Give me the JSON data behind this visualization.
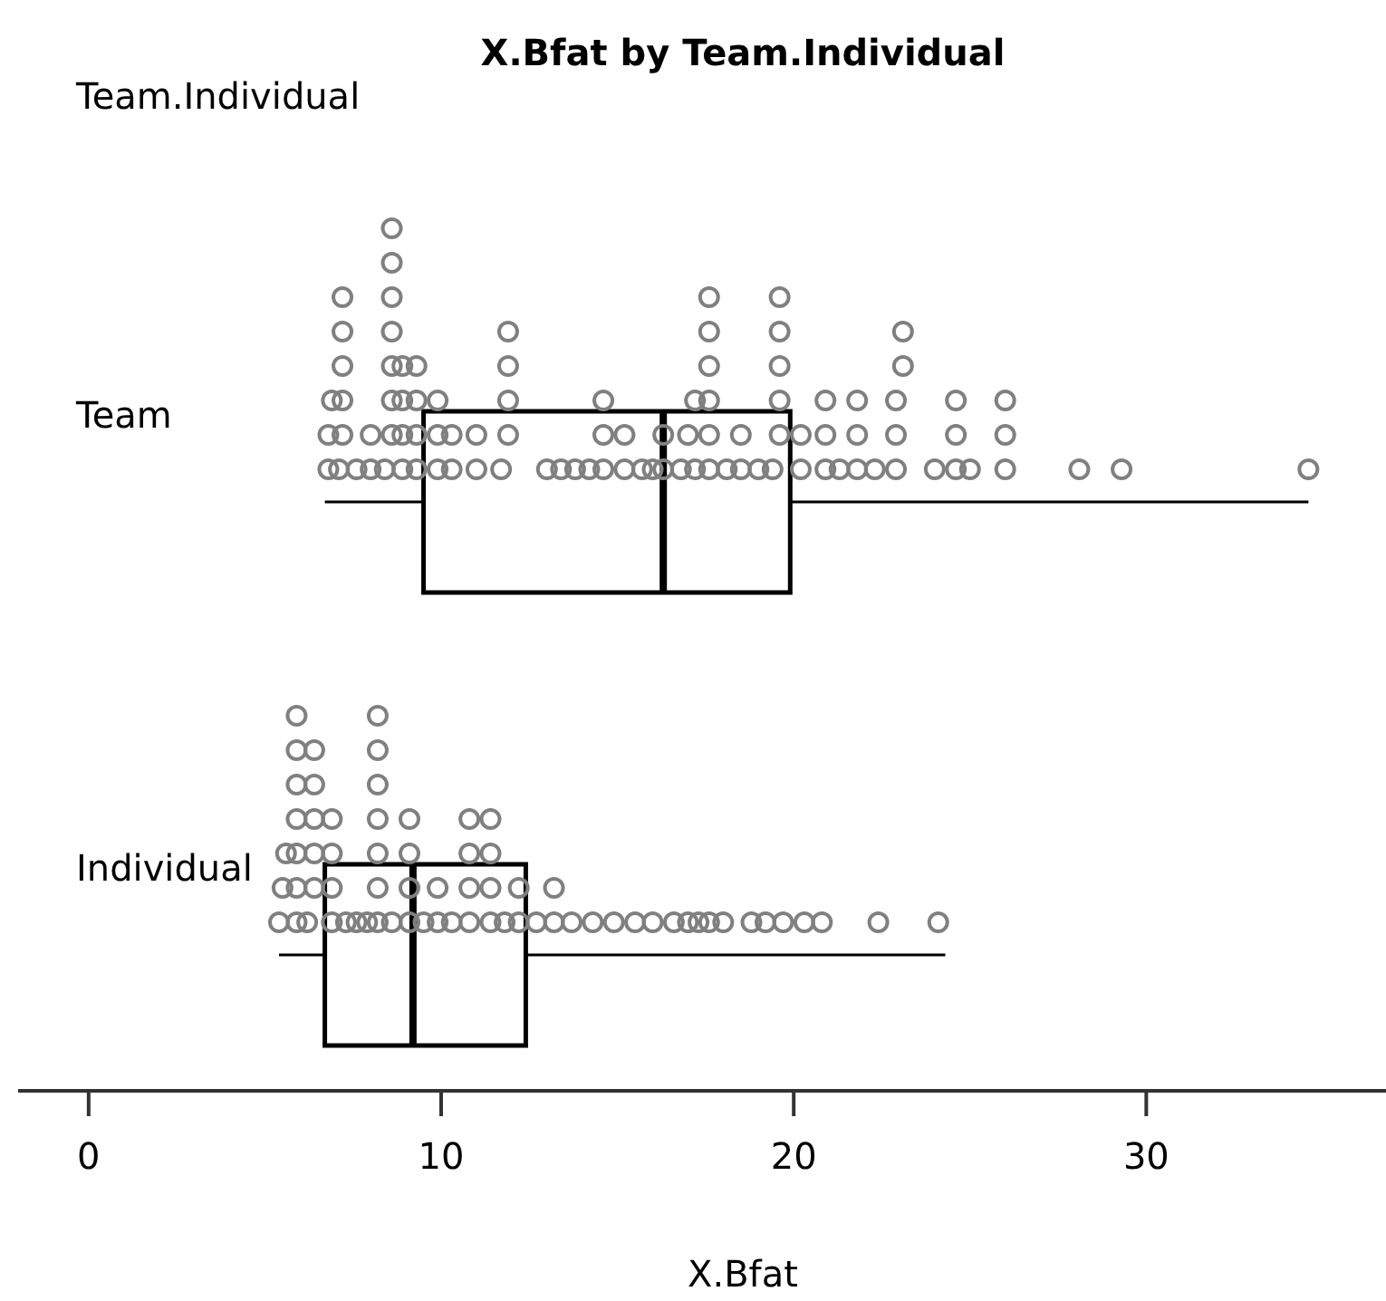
{
  "chart_data": {
    "type": "box",
    "orientation": "horizontal",
    "title": "X.Bfat by Team.Individual",
    "ylabel": "Team.Individual",
    "xlabel": "X.Bfat",
    "categories": [
      "Team",
      "Individual"
    ],
    "boxes": [
      {
        "low": 6.7,
        "q1": 9.5,
        "median": 16.3,
        "q3": 19.9,
        "high": 34.6
      },
      {
        "low": 5.4,
        "q1": 6.7,
        "median": 9.2,
        "q3": 12.4,
        "high": 24.3
      }
    ],
    "xlim": [
      -2,
      36.8
    ],
    "xticks": [
      0,
      10,
      20,
      30
    ],
    "grid": false,
    "series": [
      {
        "type": "scatter",
        "color": "#808080",
        "marker": "circle",
        "x": [
          "Team",
          "Team",
          "Team",
          "Team",
          "Team",
          "Team",
          "Team",
          "Team",
          "Team",
          "Team",
          "Team",
          "Team",
          "Team",
          "Team",
          "Team",
          "Team",
          "Team",
          "Team",
          "Team",
          "Team",
          "Team",
          "Team",
          "Team",
          "Team",
          "Team",
          "Team",
          "Team",
          "Team",
          "Team",
          "Team",
          "Team",
          "Team",
          "Team",
          "Team",
          "Team",
          "Team",
          "Team",
          "Team",
          "Team",
          "Team",
          "Team",
          "Team",
          "Team",
          "Team",
          "Team",
          "Team",
          "Team",
          "Team",
          "Team",
          "Team",
          "Team",
          "Team",
          "Team",
          "Team",
          "Team",
          "Team",
          "Team",
          "Team",
          "Team",
          "Team",
          "Team",
          "Team",
          "Team",
          "Team",
          "Team",
          "Team",
          "Team",
          "Team",
          "Team",
          "Team",
          "Team",
          "Team",
          "Team",
          "Team",
          "Team",
          "Team",
          "Team",
          "Team",
          "Team",
          "Team",
          "Team",
          "Team",
          "Team",
          "Team",
          "Team",
          "Team",
          "Team",
          "Team",
          "Team",
          "Team",
          "Team",
          "Team",
          "Team",
          "Team",
          "Team",
          "Team",
          "Team",
          "Team",
          "Team"
        ],
        "values": [
          6.8,
          6.8,
          6.9,
          7.1,
          7.2,
          7.2,
          7.2,
          7.2,
          7.2,
          7.6,
          8.0,
          8.0,
          8.4,
          8.6,
          8.6,
          8.6,
          8.6,
          8.6,
          8.6,
          8.6,
          8.9,
          8.9,
          8.9,
          8.9,
          9.3,
          9.3,
          9.3,
          9.3,
          9.9,
          9.9,
          9.9,
          10.3,
          10.3,
          11.0,
          11.0,
          11.7,
          11.9,
          11.9,
          11.9,
          11.9,
          13.0,
          13.4,
          13.8,
          14.2,
          14.6,
          14.6,
          14.6,
          15.2,
          15.2,
          15.7,
          16.0,
          16.3,
          16.3,
          16.8,
          17.0,
          17.2,
          17.2,
          17.6,
          17.6,
          17.6,
          17.6,
          17.6,
          17.6,
          18.1,
          18.5,
          18.5,
          19.0,
          19.4,
          19.6,
          19.6,
          19.6,
          19.6,
          19.6,
          20.2,
          20.2,
          20.9,
          20.9,
          20.9,
          21.3,
          21.8,
          21.8,
          21.8,
          22.3,
          22.9,
          22.9,
          22.9,
          23.1,
          23.1,
          24.0,
          24.6,
          24.6,
          24.6,
          25.0,
          26.0,
          26.0,
          26.0,
          28.1,
          29.3,
          34.6
        ]
      },
      {
        "type": "scatter",
        "color": "#808080",
        "marker": "circle",
        "x": [
          "Individual",
          "Individual",
          "Individual",
          "Individual",
          "Individual",
          "Individual",
          "Individual",
          "Individual",
          "Individual",
          "Individual",
          "Individual",
          "Individual",
          "Individual",
          "Individual",
          "Individual",
          "Individual",
          "Individual",
          "Individual",
          "Individual",
          "Individual",
          "Individual",
          "Individual",
          "Individual",
          "Individual",
          "Individual",
          "Individual",
          "Individual",
          "Individual",
          "Individual",
          "Individual",
          "Individual",
          "Individual",
          "Individual",
          "Individual",
          "Individual",
          "Individual",
          "Individual",
          "Individual",
          "Individual",
          "Individual",
          "Individual",
          "Individual",
          "Individual",
          "Individual",
          "Individual",
          "Individual",
          "Individual",
          "Individual",
          "Individual",
          "Individual",
          "Individual",
          "Individual",
          "Individual",
          "Individual",
          "Individual",
          "Individual",
          "Individual",
          "Individual",
          "Individual",
          "Individual",
          "Individual",
          "Individual",
          "Individual",
          "Individual",
          "Individual",
          "Individual",
          "Individual",
          "Individual",
          "Individual",
          "Individual"
        ],
        "values": [
          5.4,
          5.5,
          5.6,
          5.9,
          5.9,
          5.9,
          5.9,
          5.9,
          5.9,
          5.9,
          6.2,
          6.4,
          6.4,
          6.4,
          6.4,
          6.4,
          6.9,
          6.9,
          6.9,
          6.9,
          7.3,
          7.6,
          7.9,
          8.2,
          8.2,
          8.2,
          8.2,
          8.2,
          8.2,
          8.2,
          8.6,
          9.1,
          9.1,
          9.1,
          9.1,
          9.5,
          9.9,
          9.9,
          10.3,
          10.8,
          10.8,
          10.8,
          10.8,
          11.4,
          11.4,
          11.4,
          11.4,
          11.8,
          12.2,
          12.2,
          12.7,
          13.2,
          13.2,
          13.7,
          14.3,
          14.9,
          15.5,
          16.0,
          16.6,
          17.0,
          17.3,
          17.6,
          18.0,
          18.8,
          19.2,
          19.7,
          20.3,
          20.8,
          22.4,
          24.1
        ]
      }
    ]
  }
}
